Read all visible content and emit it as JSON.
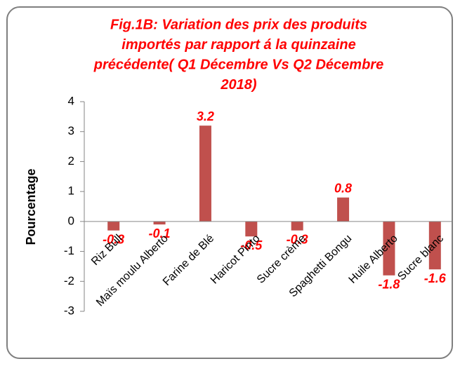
{
  "chart_data": {
    "type": "bar",
    "title": [
      "Fig.1B: Variation des prix des produits",
      "importés par rapport á la quinzaine",
      "précédente( Q1 Décembre Vs Q2 Décembre",
      "2018)"
    ],
    "y_label": "Pourcentage",
    "categories": [
      "Riz Bull",
      "Maïs moulu  Alberto",
      "Farine de Blé",
      "Haricot  Pinto",
      "Sucre crème",
      "Spaghetti Bongu",
      "Huile Alberto",
      "Sucre blanc"
    ],
    "values": [
      -0.3,
      -0.1,
      3.2,
      -0.5,
      -0.3,
      0.8,
      -1.8,
      -1.6
    ],
    "color": "#c0504d",
    "ylim": [
      -3,
      4
    ],
    "yticks": [
      -3,
      -2,
      -1,
      0,
      1,
      2,
      3,
      4
    ],
    "grid": false
  }
}
